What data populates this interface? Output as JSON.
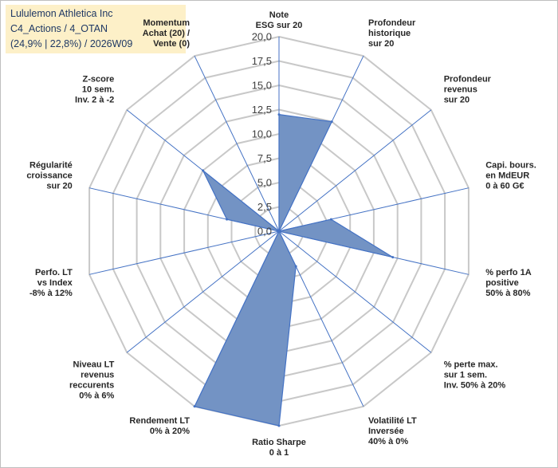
{
  "header": {
    "line1": "Lululemon Athletica Inc",
    "line2": "C4_Actions / 4_OTAN",
    "line3": "(24,9% | 22,8%) / 2026W09"
  },
  "colors": {
    "fill": "#7393c4",
    "stroke": "#4472c4",
    "grid": "#c8c8c8",
    "axis": "#4472c4",
    "title_bg": "#fdf0c8",
    "title_text": "#1f3864"
  },
  "chart_data": {
    "type": "radar",
    "title": "",
    "rlim": [
      0,
      20
    ],
    "ticks": [
      "0,0",
      "2,5",
      "5,0",
      "7,5",
      "10,0",
      "12,5",
      "15,0",
      "17,5",
      "20,0"
    ],
    "axes": [
      {
        "label": [
          "Note",
          "ESG sur 20"
        ],
        "value": 12
      },
      {
        "label": [
          "Profondeur",
          "historique",
          "sur 20"
        ],
        "value": 12.5
      },
      {
        "label": [
          "Profondeur",
          "revenus",
          "sur 20"
        ],
        "value": 0
      },
      {
        "label": [
          "Capi. bours.",
          "en MdEUR",
          "0 à 60 G€"
        ],
        "value": 5.5
      },
      {
        "label": [
          "% perfo 1A",
          "positive",
          "50% à 80%"
        ],
        "value": 12
      },
      {
        "label": [
          "% perte max.",
          "sur 1 sem.",
          "Inv. 50% à 20%"
        ],
        "value": 0
      },
      {
        "label": [
          "Volatilité LT",
          "Inversée",
          "40% à 0%"
        ],
        "value": 4
      },
      {
        "label": [
          "Ratio Sharpe",
          "0 à 1"
        ],
        "value": 20
      },
      {
        "label": [
          "Rendement LT",
          "0% à 20%"
        ],
        "value": 20
      },
      {
        "label": [
          "Niveau LT",
          "revenus",
          "reccurents",
          "0% à 6%"
        ],
        "value": 0
      },
      {
        "label": [
          "Perfo. LT",
          "vs Index",
          "-8% à 12%"
        ],
        "value": 0
      },
      {
        "label": [
          "Régularité",
          "croissance",
          "sur 20"
        ],
        "value": 5.5
      },
      {
        "label": [
          "Z-score",
          "10 sem.",
          "Inv. 2 à -2"
        ],
        "value": 10
      },
      {
        "label": [
          "Momentum",
          "Achat (20) /",
          "Vente (0)"
        ],
        "value": 0
      }
    ]
  }
}
